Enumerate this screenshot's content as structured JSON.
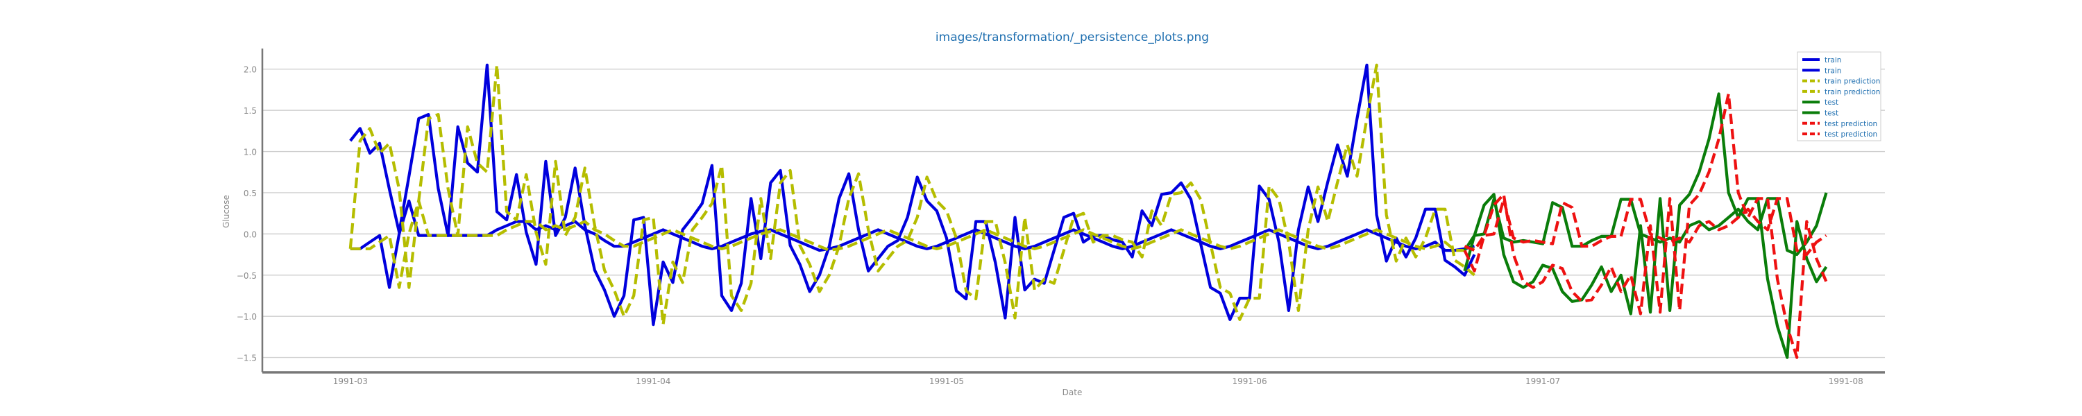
{
  "chart_data": {
    "type": "line",
    "title": "images/transformation/_persistence_plots.png",
    "xlabel": "Date",
    "ylabel": "Glucose",
    "ylim": [
      -1.68,
      2.25
    ],
    "xlim": [
      "1991-02-20",
      "1991-08-05"
    ],
    "grid": true,
    "legend_position": "top-right",
    "yticks": [
      -1.5,
      -1.0,
      -0.5,
      0.0,
      0.5,
      1.0,
      1.5,
      2.0
    ],
    "ytick_labels": [
      "−1.5",
      "−1.0",
      "−0.5",
      "0.0",
      "0.5",
      "1.0",
      "1.5",
      "2.0"
    ],
    "xticks": [
      "1991-03-01",
      "1991-04-01",
      "1991-05-01",
      "1991-06-01",
      "1991-07-01",
      "1991-08-01"
    ],
    "xtick_labels": [
      "1991-03",
      "1991-04",
      "1991-05",
      "1991-06",
      "1991-07",
      "1991-08"
    ],
    "series": [
      {
        "name": "train",
        "color": "#0000dd",
        "dash": "solid",
        "start": "1991-03-01",
        "values": [
          1.13,
          1.28,
          0.98,
          1.1,
          0.54,
          0.02,
          0.7,
          1.4,
          1.45,
          0.55,
          -0.02,
          1.3,
          0.86,
          0.75,
          2.05,
          0.27,
          0.17,
          0.72,
          0.02,
          -0.37,
          0.88,
          -0.02,
          0.2,
          0.8,
          0.1,
          -0.44,
          -0.68,
          -1.0,
          -0.75,
          0.17,
          0.2,
          -1.1,
          -0.34,
          -0.59,
          0.05,
          0.2,
          0.37,
          0.83,
          -0.75,
          -0.93,
          -0.6,
          0.43,
          -0.3,
          0.62,
          0.77,
          -0.14,
          -0.37,
          -0.7,
          -0.5,
          -0.15,
          0.43,
          0.73,
          0.05,
          -0.45,
          -0.3,
          -0.15,
          -0.08,
          0.2,
          0.69,
          0.4,
          0.28,
          -0.05,
          -0.69,
          -0.79,
          0.15,
          0.15,
          -0.35,
          -1.02,
          0.2,
          -0.68,
          -0.55,
          -0.6,
          -0.2,
          0.2,
          0.25,
          -0.1,
          -0.02,
          -0.02,
          -0.07,
          -0.1,
          -0.28,
          0.28,
          0.1,
          0.48,
          0.5,
          0.62,
          0.42,
          -0.12,
          -0.65,
          -0.72,
          -1.04,
          -0.78,
          -0.78,
          0.58,
          0.42,
          -0.1,
          -0.93,
          0.05,
          0.57,
          0.15,
          0.63,
          1.08,
          0.7,
          1.4,
          2.05,
          0.23,
          -0.33,
          -0.05,
          -0.28,
          -0.05,
          0.3,
          0.3,
          -0.32,
          -0.4,
          -0.5,
          -0.25
        ]
      },
      {
        "name": "train",
        "color": "#0000dd",
        "dash": "solid",
        "start": "1991-03-01",
        "values": [
          -0.18,
          -0.18,
          -0.1,
          -0.02,
          -0.65,
          0.0,
          0.4,
          -0.02,
          -0.02,
          -0.02,
          -0.02,
          -0.02,
          -0.02,
          -0.02,
          -0.02,
          0.05,
          0.1,
          0.15,
          0.15,
          0.05,
          0.1,
          0.05,
          0.1,
          0.15,
          0.05,
          0.0,
          -0.08,
          -0.15,
          -0.15,
          -0.1,
          -0.05,
          0.0,
          0.05,
          0.0,
          -0.05,
          -0.1,
          -0.15,
          -0.18,
          -0.15,
          -0.1,
          -0.05,
          0.0,
          0.03,
          0.05,
          0.0,
          -0.05,
          -0.1,
          -0.15,
          -0.2,
          -0.18,
          -0.15,
          -0.1,
          -0.05,
          0.0,
          0.05,
          0.0,
          -0.05,
          -0.1,
          -0.15,
          -0.18,
          -0.15,
          -0.1,
          -0.05,
          0.0,
          0.05,
          0.0,
          -0.05,
          -0.1,
          -0.15,
          -0.18,
          -0.15,
          -0.1,
          -0.05,
          0.0,
          0.05,
          0.0,
          -0.05,
          -0.1,
          -0.15,
          -0.18,
          -0.15,
          -0.1,
          -0.05,
          0.0,
          0.05,
          0.0,
          -0.05,
          -0.1,
          -0.15,
          -0.18,
          -0.15,
          -0.1,
          -0.05,
          0.0,
          0.05,
          0.0,
          -0.05,
          -0.1,
          -0.15,
          -0.18,
          -0.15,
          -0.1,
          -0.05,
          0.0,
          0.05,
          0.0,
          -0.05,
          -0.1,
          -0.15,
          -0.18,
          -0.15,
          -0.1,
          -0.2,
          -0.2,
          -0.18,
          -0.15
        ]
      },
      {
        "name": "train prediction",
        "color": "#b5bd00",
        "dash": "dashed",
        "start": "1991-03-01",
        "values": [
          -0.18,
          1.13,
          1.28,
          0.98,
          1.1,
          0.54,
          -0.65,
          0.4,
          1.4,
          1.45,
          0.55,
          -0.02,
          1.3,
          0.86,
          0.75,
          2.05,
          0.27,
          0.17,
          0.72,
          0.02,
          -0.37,
          0.88,
          -0.02,
          0.2,
          0.8,
          0.1,
          -0.44,
          -0.68,
          -1.0,
          -0.75,
          0.17,
          0.2,
          -1.1,
          -0.34,
          -0.59,
          0.05,
          0.2,
          0.37,
          0.83,
          -0.75,
          -0.93,
          -0.6,
          0.43,
          -0.3,
          0.62,
          0.77,
          -0.14,
          -0.37,
          -0.7,
          -0.5,
          -0.15,
          0.43,
          0.73,
          0.05,
          -0.45,
          -0.3,
          -0.15,
          -0.08,
          0.2,
          0.69,
          0.4,
          0.28,
          -0.05,
          -0.69,
          -0.79,
          0.15,
          0.15,
          -0.35,
          -1.02,
          0.2,
          -0.68,
          -0.55,
          -0.6,
          -0.2,
          0.2,
          0.25,
          -0.1,
          -0.02,
          -0.02,
          -0.07,
          -0.1,
          -0.28,
          0.28,
          0.1,
          0.48,
          0.5,
          0.62,
          0.42,
          -0.12,
          -0.65,
          -0.72,
          -1.04,
          -0.78,
          -0.78,
          0.58,
          0.42,
          -0.1,
          -0.93,
          0.05,
          0.57,
          0.15,
          0.63,
          1.08,
          0.7,
          1.4,
          2.05,
          0.23,
          -0.33,
          -0.05,
          -0.28,
          -0.05,
          0.3,
          0.3,
          -0.32,
          -0.4,
          -0.5
        ]
      },
      {
        "name": "train prediction",
        "color": "#b5bd00",
        "dash": "dashed",
        "start": "1991-03-01",
        "values": [
          -0.18,
          -0.18,
          -0.18,
          -0.1,
          -0.02,
          -0.65,
          0.0,
          0.4,
          -0.02,
          -0.02,
          -0.02,
          -0.02,
          -0.02,
          -0.02,
          -0.02,
          -0.02,
          0.05,
          0.1,
          0.15,
          0.15,
          0.05,
          0.1,
          0.05,
          0.1,
          0.15,
          0.05,
          0.0,
          -0.08,
          -0.15,
          -0.15,
          -0.1,
          -0.05,
          0.0,
          0.05,
          0.0,
          -0.05,
          -0.1,
          -0.15,
          -0.18,
          -0.15,
          -0.1,
          -0.05,
          0.0,
          0.03,
          0.05,
          0.0,
          -0.05,
          -0.1,
          -0.15,
          -0.2,
          -0.18,
          -0.15,
          -0.1,
          -0.05,
          0.0,
          0.05,
          0.0,
          -0.05,
          -0.1,
          -0.15,
          -0.18,
          -0.15,
          -0.1,
          -0.05,
          0.0,
          0.05,
          0.0,
          -0.05,
          -0.1,
          -0.15,
          -0.18,
          -0.15,
          -0.1,
          -0.05,
          0.0,
          0.05,
          0.0,
          -0.05,
          -0.1,
          -0.15,
          -0.18,
          -0.15,
          -0.1,
          -0.05,
          0.0,
          0.05,
          0.0,
          -0.05,
          -0.1,
          -0.15,
          -0.18,
          -0.15,
          -0.1,
          -0.05,
          0.0,
          0.05,
          0.0,
          -0.05,
          -0.1,
          -0.15,
          -0.18,
          -0.15,
          -0.1,
          -0.05,
          0.0,
          0.05,
          0.0,
          -0.05,
          -0.1,
          -0.15,
          -0.18,
          -0.15,
          -0.1,
          -0.2,
          -0.2,
          -0.18
        ]
      },
      {
        "name": "test",
        "color": "#0a7d0a",
        "dash": "solid",
        "start": "1991-06-23",
        "values": [
          -0.2,
          -0.02,
          0.35,
          0.48,
          -0.25,
          -0.58,
          -0.65,
          -0.58,
          -0.38,
          -0.42,
          -0.7,
          -0.82,
          -0.8,
          -0.62,
          -0.4,
          -0.7,
          -0.5,
          -0.97,
          0.1,
          -0.95,
          0.43,
          -0.93,
          0.35,
          0.48,
          0.75,
          1.15,
          1.7,
          0.5,
          0.2,
          0.43,
          0.43,
          -0.55,
          -1.12,
          -1.5,
          0.15,
          -0.3,
          -0.58,
          -0.4
        ]
      },
      {
        "name": "test",
        "color": "#0a7d0a",
        "dash": "solid",
        "start": "1991-06-23",
        "values": [
          -0.45,
          -0.02,
          0.0,
          0.42,
          -0.05,
          -0.1,
          -0.08,
          -0.1,
          -0.12,
          0.38,
          0.32,
          -0.15,
          -0.15,
          -0.08,
          -0.03,
          -0.03,
          0.42,
          0.42,
          0.0,
          -0.05,
          -0.1,
          -0.05,
          -0.1,
          0.1,
          0.15,
          0.05,
          0.1,
          0.2,
          0.3,
          0.15,
          0.05,
          0.43,
          0.43,
          -0.2,
          -0.25,
          -0.1,
          0.1,
          0.5
        ]
      },
      {
        "name": "test prediction",
        "color": "#ee1111",
        "dash": "dashed",
        "start": "1991-06-23",
        "values": [
          -0.15,
          -0.2,
          -0.02,
          0.35,
          0.48,
          -0.25,
          -0.58,
          -0.65,
          -0.58,
          -0.38,
          -0.42,
          -0.7,
          -0.82,
          -0.8,
          -0.62,
          -0.4,
          -0.7,
          -0.5,
          -0.97,
          0.1,
          -0.95,
          0.43,
          -0.93,
          0.35,
          0.48,
          0.75,
          1.15,
          1.7,
          0.5,
          0.2,
          0.43,
          0.43,
          -0.55,
          -1.12,
          -1.5,
          0.15,
          -0.3,
          -0.58
        ]
      },
      {
        "name": "test prediction",
        "color": "#ee1111",
        "dash": "dashed",
        "start": "1991-06-23",
        "values": [
          -0.2,
          -0.45,
          -0.02,
          0.0,
          0.42,
          -0.05,
          -0.1,
          -0.08,
          -0.1,
          -0.12,
          0.38,
          0.32,
          -0.15,
          -0.15,
          -0.08,
          -0.03,
          -0.03,
          0.42,
          0.42,
          0.0,
          -0.05,
          -0.1,
          -0.05,
          -0.1,
          0.1,
          0.15,
          0.05,
          0.1,
          0.2,
          0.3,
          0.15,
          0.05,
          0.43,
          0.43,
          -0.2,
          -0.25,
          -0.1,
          -0.02
        ]
      }
    ]
  }
}
